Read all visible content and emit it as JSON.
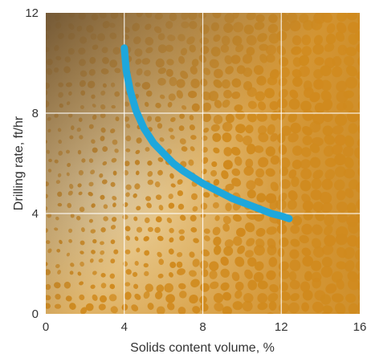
{
  "chart_data": {
    "type": "line",
    "title": "",
    "xlabel": "Solids content volume, %",
    "ylabel": "Drilling rate, ft/hr",
    "xlim": [
      0,
      16
    ],
    "ylim": [
      0,
      12
    ],
    "xticks": [
      "0",
      "4",
      "8",
      "12",
      "16"
    ],
    "yticks": [
      "0",
      "4",
      "8",
      "12"
    ],
    "grid": true,
    "legend": "none",
    "series": [
      {
        "x": [
          4.0,
          4.1,
          4.3,
          4.6,
          5.0,
          5.5,
          6.0,
          6.5,
          7.0,
          7.5,
          8.0,
          8.5,
          9.0,
          9.5,
          10.0,
          10.5,
          11.0,
          11.5,
          12.0,
          12.4
        ],
        "y": [
          10.6,
          9.7,
          8.9,
          8.1,
          7.4,
          6.8,
          6.4,
          6.0,
          5.7,
          5.45,
          5.2,
          5.0,
          4.8,
          4.6,
          4.45,
          4.3,
          4.15,
          4.0,
          3.9,
          3.8
        ],
        "color": "#1ea7dc"
      }
    ],
    "background": {
      "base_color": "#d9a24a",
      "pebble_color": "#d08a1e",
      "light_color": "#f4e8c8",
      "dark_color": "#6e5535"
    }
  }
}
